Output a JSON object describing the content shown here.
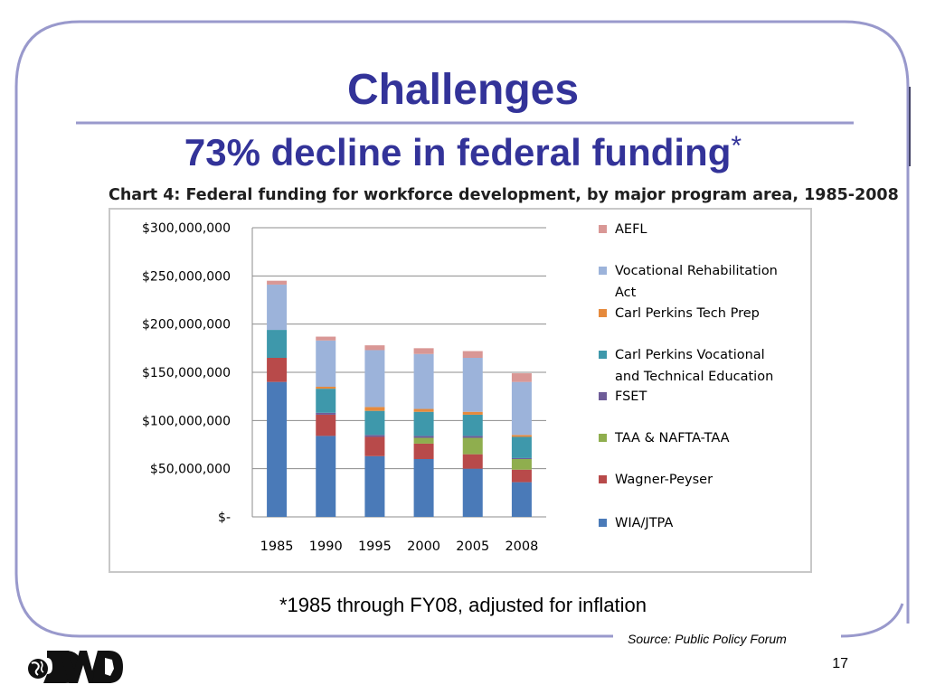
{
  "slide": {
    "title": "Challenges",
    "subtitle": "73% decline in federal funding",
    "subtitle_mark": "*",
    "chart_heading": "Chart 4: Federal funding for workforce development, by major program area, 1985-2008",
    "footnote": "*1985 through FY08, adjusted for inflation",
    "source": "Source: Public Policy Forum",
    "page_number": "17",
    "accent_color": "#333399",
    "frame_color": "#9999cc"
  },
  "chart_data": {
    "type": "bar",
    "stacked": true,
    "categories": [
      "1985",
      "1990",
      "1995",
      "2000",
      "2005",
      "2008"
    ],
    "ylim": [
      0,
      300000000
    ],
    "yticks": [
      0,
      50000000,
      100000000,
      150000000,
      200000000,
      250000000,
      300000000
    ],
    "ytick_labels": [
      "$-",
      "$50,000,000",
      "$100,000,000",
      "$150,000,000",
      "$200,000,000",
      "$250,000,000",
      "$300,000,000"
    ],
    "grid": true,
    "legend_position": "right",
    "series": [
      {
        "name": "WIA/JTPA",
        "color": "#4a7ab8",
        "values": [
          140000000,
          84000000,
          63000000,
          60000000,
          50000000,
          36000000
        ]
      },
      {
        "name": "Wagner-Peyser",
        "color": "#b84a4a",
        "values": [
          25000000,
          22000000,
          20000000,
          16000000,
          15000000,
          13000000
        ]
      },
      {
        "name": "TAA & NAFTA-TAA",
        "color": "#8fae4e",
        "values": [
          0,
          0,
          0,
          6000000,
          17000000,
          11000000
        ]
      },
      {
        "name": "FSET",
        "color": "#6e5c98",
        "values": [
          0,
          2000000,
          2000000,
          2000000,
          2000000,
          1000000
        ]
      },
      {
        "name": "Carl Perkins Vocational and Technical Education",
        "color": "#3e98ab",
        "values": [
          29000000,
          25000000,
          25000000,
          25000000,
          22000000,
          22000000
        ]
      },
      {
        "name": "Carl Perkins Tech Prep",
        "color": "#e68a3c",
        "values": [
          0,
          2000000,
          4000000,
          3000000,
          3000000,
          2000000
        ]
      },
      {
        "name": "Vocational Rehabilitation Act",
        "color": "#9cb3da",
        "values": [
          47000000,
          48000000,
          59000000,
          57000000,
          56000000,
          55000000
        ]
      },
      {
        "name": "AEFL",
        "color": "#d99795",
        "values": [
          4000000,
          4000000,
          5000000,
          6000000,
          7000000,
          9000000
        ]
      }
    ],
    "legend_order": [
      "AEFL",
      "Vocational Rehabilitation Act",
      "Carl Perkins Tech Prep",
      "Carl Perkins Vocational and Technical Education",
      "FSET",
      "TAA & NAFTA-TAA",
      "Wagner-Peyser",
      "WIA/JTPA"
    ]
  }
}
